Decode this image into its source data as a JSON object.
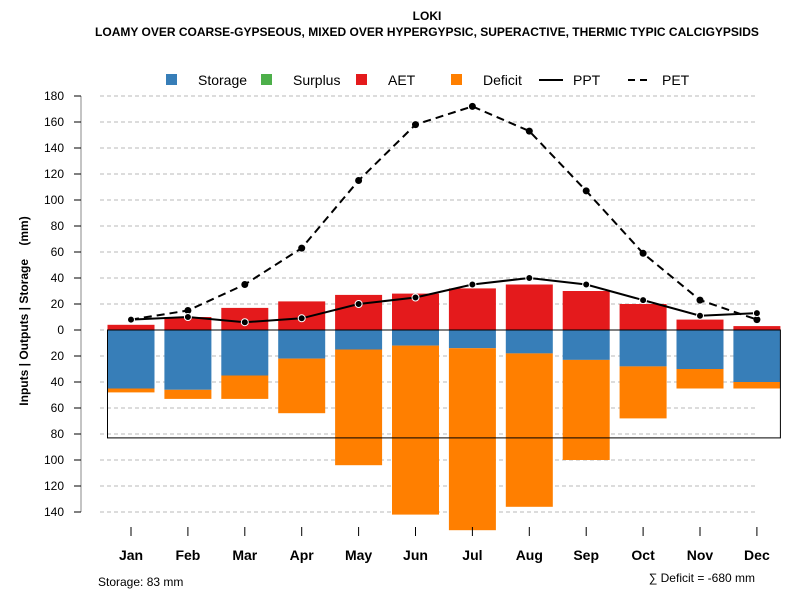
{
  "chart_data": {
    "type": "bar",
    "title": "LOKI",
    "subtitle": "LOAMY OVER COARSE-GYPSEOUS, MIXED OVER HYPERGYPSIC, SUPERACTIVE, THERMIC TYPIC CALCIGYPSIDS",
    "xlabel": "",
    "ylabel": "Inputs | Outputs | Storage    (mm)",
    "ylim": [
      -140,
      180
    ],
    "yticks": [
      180,
      160,
      140,
      120,
      100,
      80,
      60,
      40,
      20,
      0,
      20,
      40,
      60,
      80,
      100,
      120,
      140
    ],
    "ytick_values": [
      180,
      160,
      140,
      120,
      100,
      80,
      60,
      40,
      20,
      0,
      -20,
      -40,
      -60,
      -80,
      -100,
      -120,
      -140
    ],
    "grid": true,
    "legend_position": "top",
    "categories": [
      "Jan",
      "Feb",
      "Mar",
      "Apr",
      "May",
      "Jun",
      "Jul",
      "Aug",
      "Sep",
      "Oct",
      "Nov",
      "Dec"
    ],
    "legend": [
      {
        "name": "Storage",
        "kind": "box",
        "color": "#377EB8"
      },
      {
        "name": "Surplus",
        "kind": "box",
        "color": "#4DAF4A"
      },
      {
        "name": "AET",
        "kind": "box",
        "color": "#E41A1C"
      },
      {
        "name": "Deficit",
        "kind": "box",
        "color": "#FF7F00"
      },
      {
        "name": "PPT",
        "kind": "solid-line",
        "color": "#000000"
      },
      {
        "name": "PET",
        "kind": "dashed-line",
        "color": "#000000"
      }
    ],
    "series": [
      {
        "name": "AET",
        "color": "#E41A1C",
        "values": [
          4,
          10,
          17,
          22,
          27,
          28,
          32,
          35,
          30,
          20,
          8,
          3
        ]
      },
      {
        "name": "Storage",
        "color": "#377EB8",
        "values": [
          45,
          46,
          35,
          22,
          15,
          12,
          14,
          18,
          23,
          28,
          30,
          40
        ]
      },
      {
        "name": "Deficit",
        "color": "#FF7F00",
        "values": [
          3,
          7,
          18,
          42,
          89,
          130,
          140,
          118,
          77,
          40,
          15,
          5
        ]
      },
      {
        "name": "Surplus",
        "color": "#4DAF4A",
        "values": [
          0,
          0,
          0,
          0,
          0,
          0,
          0,
          0,
          0,
          0,
          0,
          0
        ]
      },
      {
        "name": "PPT",
        "color": "#000000",
        "values": [
          8,
          10,
          6,
          9,
          20,
          25,
          35,
          40,
          35,
          23,
          11,
          13
        ]
      },
      {
        "name": "PET",
        "color": "#000000",
        "values": [
          8,
          15,
          35,
          63,
          115,
          158,
          172,
          153,
          107,
          59,
          23,
          8
        ]
      }
    ],
    "storage_capacity_mm": 83,
    "annotations": {
      "storage": "Storage: 83 mm",
      "deficit_sum": "∑ Deficit = -680 mm"
    }
  }
}
